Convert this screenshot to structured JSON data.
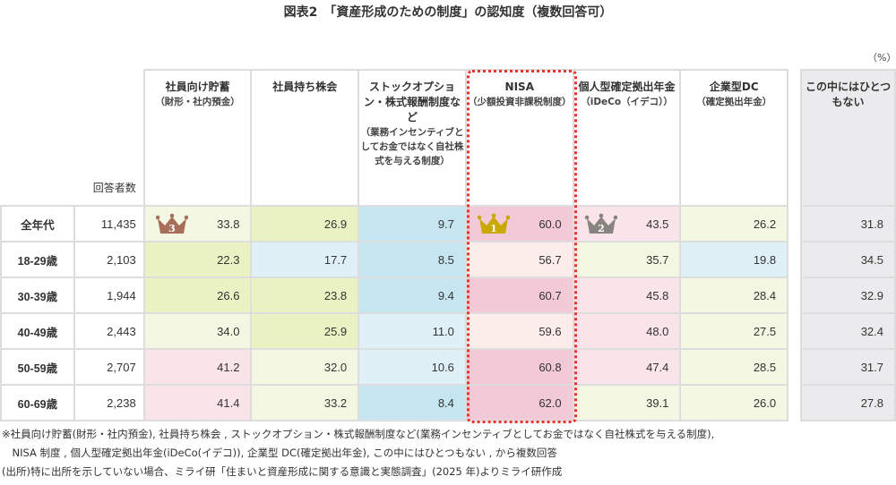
{
  "title": "図表2　「資産形成のための制度」の認知度（複数回答可）",
  "unit": "（%）",
  "table": {
    "count_header": "回答者数",
    "columns": [
      {
        "name": "社員向け貯蓄",
        "sub": "（財形・社内預金）"
      },
      {
        "name": "社員持ち株会",
        "sub": ""
      },
      {
        "name": "ストックオプション・株式報酬制度など",
        "sub": "（業務インセンティブとしてお金ではなく自社株式を与える制度）"
      },
      {
        "name": "NISA",
        "sub": "（少額投資非課税制度）"
      },
      {
        "name": "個人型確定拠出年金",
        "sub": "（iDeCo（イデコ））"
      },
      {
        "name": "企業型DC",
        "sub": "（確定拠出年金）"
      }
    ],
    "none_column": "この中にはひとつもない",
    "highlighted_column": "NISA",
    "highlight_color": "#e8332a",
    "rows": [
      {
        "age": "全年代",
        "count": "11,435",
        "values": [
          "33.8",
          "26.9",
          "9.7",
          "60.0",
          "43.5",
          "26.2"
        ],
        "shades": [
          "c",
          "g",
          "b",
          "p",
          "lp",
          "c"
        ],
        "none": "31.8"
      },
      {
        "age": "18-29歳",
        "count": "2,103",
        "values": [
          "22.3",
          "17.7",
          "8.5",
          "56.7",
          "35.7",
          "19.8"
        ],
        "shades": [
          "g",
          "lb",
          "b",
          "vp",
          "c",
          "lb"
        ],
        "none": "34.5"
      },
      {
        "age": "30-39歳",
        "count": "1,944",
        "values": [
          "26.6",
          "23.8",
          "9.4",
          "60.7",
          "45.8",
          "28.4"
        ],
        "shades": [
          "g",
          "g",
          "b",
          "p",
          "lp",
          "c"
        ],
        "none": "32.9"
      },
      {
        "age": "40-49歳",
        "count": "2,443",
        "values": [
          "34.0",
          "25.9",
          "11.0",
          "59.6",
          "48.0",
          "27.5"
        ],
        "shades": [
          "c",
          "g",
          "lb",
          "vp",
          "lp",
          "c"
        ],
        "none": "32.4"
      },
      {
        "age": "50-59歳",
        "count": "2,707",
        "values": [
          "41.2",
          "32.0",
          "10.6",
          "60.8",
          "47.4",
          "28.5"
        ],
        "shades": [
          "lp",
          "c",
          "lb",
          "p",
          "lp",
          "c"
        ],
        "none": "31.7"
      },
      {
        "age": "60-69歳",
        "count": "2,238",
        "values": [
          "41.4",
          "33.2",
          "8.4",
          "62.0",
          "39.1",
          "26.0"
        ],
        "shades": [
          "lp",
          "c",
          "b",
          "p",
          "c",
          "c"
        ],
        "none": "27.8"
      }
    ],
    "rankings": [
      {
        "rank": "1",
        "column": 3,
        "color": "#c9a800"
      },
      {
        "rank": "2",
        "column": 4,
        "color": "#8a8480"
      },
      {
        "rank": "3",
        "column": 0,
        "color": "#a8705a"
      }
    ],
    "shade_colors": {
      "p": "#f2c9d6",
      "lp": "#f9e4ea",
      "vp": "#fdedea",
      "g": "#eaf2c4",
      "c": "#f4f8e2",
      "b": "#c5e6f0",
      "lb": "#dff1f7"
    }
  },
  "notes": [
    "※社員向け貯蓄(財形・社内預金), 社員持ち株会 , ストックオプション・株式報酬制度など(業務インセンティブとしてお金ではなく自社株式を与える制度),",
    "　NISA 制度 , 個人型確定拠出年金(iDeCo(イデコ)), 企業型 DC(確定拠出年金), この中にはひとつもない , から複数回答",
    "(出所)特に出所を示していない場合、ミライ研「住まいと資産形成に関する意識と実態調査」(2025 年)よりミライ研作成"
  ]
}
